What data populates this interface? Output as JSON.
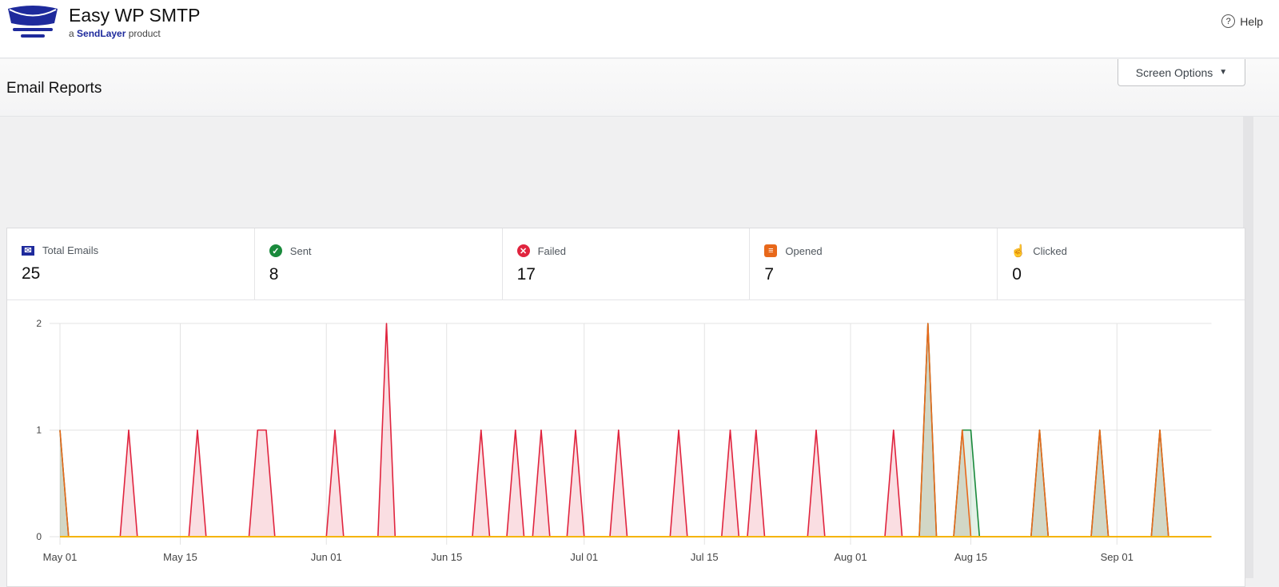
{
  "header": {
    "brand": "Easy WP SMTP",
    "tagline_prefix": "a",
    "tagline_brand": "SendLayer",
    "tagline_suffix": "product",
    "help_label": "Help"
  },
  "page": {
    "title": "Email Reports",
    "screen_options_label": "Screen Options"
  },
  "colors": {
    "total": "#1e2a9c",
    "sent": "#1a8a3c",
    "failed": "#e0243e",
    "opened": "#e8681a",
    "clicked": "#f5b400"
  },
  "stats": [
    {
      "label": "Total Emails",
      "value": "25",
      "icon": "envelope-icon"
    },
    {
      "label": "Sent",
      "value": "8",
      "icon": "check-circle-icon"
    },
    {
      "label": "Failed",
      "value": "17",
      "icon": "x-circle-icon"
    },
    {
      "label": "Opened",
      "value": "7",
      "icon": "opened-envelope-icon"
    },
    {
      "label": "Clicked",
      "value": "0",
      "icon": "pointer-hand-icon"
    }
  ],
  "chart_data": {
    "type": "area",
    "x_range": [
      "05-01",
      "09-12"
    ],
    "ylim": [
      0,
      2
    ],
    "y_ticks": [
      "0",
      "1",
      "2"
    ],
    "x_ticks": [
      {
        "label": "May 01",
        "date": "05-01"
      },
      {
        "label": "May 15",
        "date": "05-15"
      },
      {
        "label": "Jun 01",
        "date": "06-01"
      },
      {
        "label": "Jun 15",
        "date": "06-15"
      },
      {
        "label": "Jul 01",
        "date": "07-01"
      },
      {
        "label": "Jul 15",
        "date": "07-15"
      },
      {
        "label": "Aug 01",
        "date": "08-01"
      },
      {
        "label": "Aug 15",
        "date": "08-15"
      },
      {
        "label": "Sep 01",
        "date": "09-01"
      }
    ],
    "grid": true,
    "series": [
      {
        "key": "failed",
        "points": [
          [
            "05-09",
            1
          ],
          [
            "05-17",
            1
          ],
          [
            "05-24",
            1
          ],
          [
            "05-25",
            1
          ],
          [
            "06-02",
            1
          ],
          [
            "06-08",
            2
          ],
          [
            "06-19",
            1
          ],
          [
            "06-23",
            1
          ],
          [
            "06-26",
            1
          ],
          [
            "06-30",
            1
          ],
          [
            "07-05",
            1
          ],
          [
            "07-12",
            1
          ],
          [
            "07-18",
            1
          ],
          [
            "07-21",
            1
          ],
          [
            "07-28",
            1
          ],
          [
            "08-06",
            1
          ]
        ]
      },
      {
        "key": "sent",
        "points": [
          [
            "05-01",
            1
          ],
          [
            "08-10",
            2
          ],
          [
            "08-14",
            1
          ],
          [
            "08-15",
            1
          ],
          [
            "08-23",
            1
          ],
          [
            "08-30",
            1
          ],
          [
            "09-06",
            1
          ]
        ]
      },
      {
        "key": "opened",
        "points": [
          [
            "05-01",
            1
          ],
          [
            "08-10",
            2
          ],
          [
            "08-14",
            1
          ],
          [
            "08-23",
            1
          ],
          [
            "08-30",
            1
          ],
          [
            "09-06",
            1
          ]
        ]
      },
      {
        "key": "clicked",
        "points": []
      }
    ]
  }
}
